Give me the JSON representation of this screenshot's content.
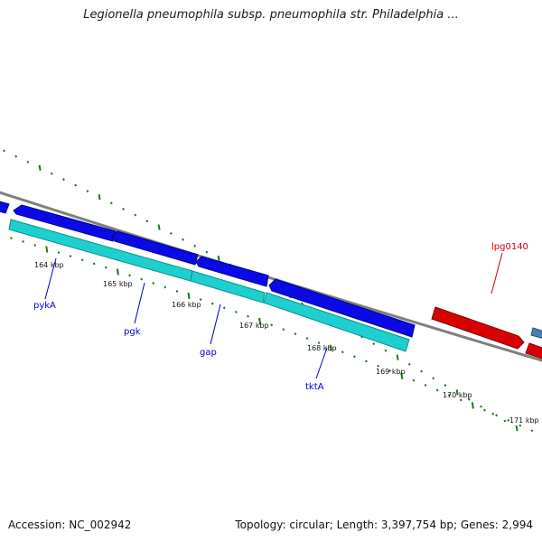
{
  "title": "Legionella pneumophila subsp. pneumophila str. Philadelphia ...",
  "footer": {
    "accession": "Accession: NC_002942",
    "summary": "Topology: circular; Length: 3,397,754 bp; Genes: 2,994"
  },
  "colors": {
    "backbone": "#7f7f7f",
    "tick": "#1a7a1a",
    "cds_forward": "#0a0ae6",
    "cds_reverse": "#d90000",
    "rna": "#1ecfcf",
    "other": "#4a7fb0",
    "label_forward": "#0000cc",
    "label_reverse": "#cc0000"
  },
  "ticks": [
    {
      "label": "164 kbp"
    },
    {
      "label": "165 kbp"
    },
    {
      "label": "166 kbp"
    },
    {
      "label": "167 kbp"
    },
    {
      "label": "168 kbp"
    },
    {
      "label": "169 kbp"
    },
    {
      "label": "170 kbp"
    },
    {
      "label": "171 kbp"
    }
  ],
  "genes": [
    {
      "name": "pykA",
      "strand": "forward"
    },
    {
      "name": "pgk",
      "strand": "forward"
    },
    {
      "name": "gap",
      "strand": "forward"
    },
    {
      "name": "tktA",
      "strand": "forward"
    },
    {
      "name": "lpg0140",
      "strand": "reverse"
    }
  ]
}
